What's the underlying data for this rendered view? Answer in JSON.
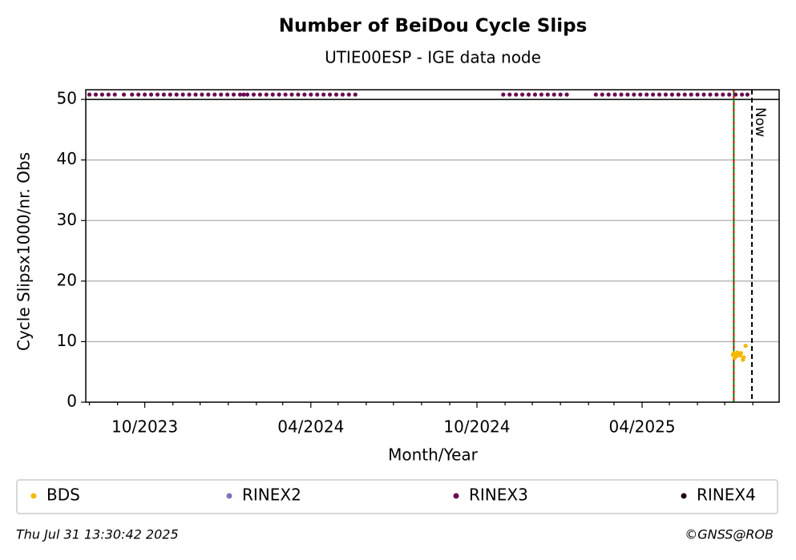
{
  "chart_data": {
    "type": "scatter",
    "title": "Number of BeiDou Cycle Slips",
    "subtitle": "UTIE00ESP - IGE data node",
    "x_label": "Month/Year",
    "y_label": "Cycle Slipsx1000/nr. Obs",
    "xlim": [
      "2023-07-28",
      "2025-08-30"
    ],
    "xticks": [
      {
        "value": "2023-10",
        "label": "10/2023"
      },
      {
        "value": "2024-04",
        "label": "04/2024"
      },
      {
        "value": "2024-10",
        "label": "10/2024"
      },
      {
        "value": "2025-04",
        "label": "04/2025"
      }
    ],
    "xminorticks": [
      "2023-08",
      "2023-09",
      "2023-11",
      "2023-12",
      "2024-01",
      "2024-02",
      "2024-03",
      "2024-05",
      "2024-06",
      "2024-07",
      "2024-08",
      "2024-09",
      "2024-11",
      "2024-12",
      "2025-01",
      "2025-02",
      "2025-03",
      "2025-05",
      "2025-06",
      "2025-07",
      "2025-08"
    ],
    "ylim": [
      0,
      51.6
    ],
    "yticks": [
      0,
      10,
      20,
      30,
      40,
      50
    ],
    "grid": true,
    "hline": 50,
    "vlines": [
      {
        "x": "2025-07-11",
        "color": "#008000",
        "dash_color": "#ff0000"
      },
      {
        "x": "2025-07-31",
        "color": "#000000",
        "label": "Now"
      }
    ],
    "legend": "bottom",
    "series": [
      {
        "name": "BDS",
        "color": "#f5b800",
        "x": [
          "2025-07-10",
          "2025-07-11",
          "2025-07-12",
          "2025-07-13",
          "2025-07-14",
          "2025-07-15",
          "2025-07-16",
          "2025-07-17",
          "2025-07-18",
          "2025-07-19",
          "2025-07-21",
          "2025-07-22",
          "2025-07-24"
        ],
        "values": [
          7.8,
          8.1,
          7.3,
          8.0,
          7.6,
          8.2,
          7.9,
          8.0,
          7.7,
          8.1,
          7.0,
          7.4,
          9.3
        ]
      },
      {
        "name": "RINEX2",
        "color": "#8073b8",
        "x": [],
        "values": []
      },
      {
        "name": "RINEX3",
        "color": "#6a0a52",
        "x": [
          "2023-08-01",
          "2023-08-08",
          "2023-08-15",
          "2023-08-22",
          "2023-08-29",
          "2023-09-08",
          "2023-09-17",
          "2023-09-24",
          "2023-10-01",
          "2023-10-08",
          "2023-10-15",
          "2023-10-22",
          "2023-10-29",
          "2023-11-05",
          "2023-11-12",
          "2023-11-19",
          "2023-11-26",
          "2023-12-03",
          "2023-12-10",
          "2023-12-17",
          "2023-12-24",
          "2023-12-31",
          "2024-01-07",
          "2024-01-14",
          "2024-01-18",
          "2024-01-22",
          "2024-01-29",
          "2024-02-05",
          "2024-02-12",
          "2024-02-19",
          "2024-02-26",
          "2024-03-04",
          "2024-03-11",
          "2024-03-18",
          "2024-03-25",
          "2024-04-01",
          "2024-04-08",
          "2024-04-15",
          "2024-04-22",
          "2024-04-29",
          "2024-05-06",
          "2024-05-13",
          "2024-05-20",
          "2024-10-30",
          "2024-11-06",
          "2024-11-13",
          "2024-11-20",
          "2024-11-27",
          "2024-12-04",
          "2024-12-11",
          "2024-12-18",
          "2024-12-25",
          "2025-01-01",
          "2025-01-08",
          "2025-02-09",
          "2025-02-16",
          "2025-02-23",
          "2025-03-02",
          "2025-03-09",
          "2025-03-16",
          "2025-03-23",
          "2025-03-30",
          "2025-04-06",
          "2025-04-13",
          "2025-04-20",
          "2025-04-27",
          "2025-05-04",
          "2025-05-11",
          "2025-05-18",
          "2025-05-25",
          "2025-06-01",
          "2025-06-08",
          "2025-06-15",
          "2025-06-22",
          "2025-06-29",
          "2025-07-06",
          "2025-07-13",
          "2025-07-20",
          "2025-07-26"
        ],
        "values": [
          50.8,
          50.8,
          50.8,
          50.8,
          50.8,
          50.8,
          50.8,
          50.8,
          50.8,
          50.8,
          50.8,
          50.8,
          50.8,
          50.8,
          50.8,
          50.8,
          50.8,
          50.8,
          50.8,
          50.8,
          50.8,
          50.8,
          50.8,
          50.8,
          50.8,
          50.8,
          50.8,
          50.8,
          50.8,
          50.8,
          50.8,
          50.8,
          50.8,
          50.8,
          50.8,
          50.8,
          50.8,
          50.8,
          50.8,
          50.8,
          50.8,
          50.8,
          50.8,
          50.8,
          50.8,
          50.8,
          50.8,
          50.8,
          50.8,
          50.8,
          50.8,
          50.8,
          50.8,
          50.8,
          50.8,
          50.8,
          50.8,
          50.8,
          50.8,
          50.8,
          50.8,
          50.8,
          50.8,
          50.8,
          50.8,
          50.8,
          50.8,
          50.8,
          50.8,
          50.8,
          50.8,
          50.8,
          50.8,
          50.8,
          50.8,
          50.8,
          50.8,
          50.8,
          50.8
        ]
      },
      {
        "name": "RINEX4",
        "color": "#1c0414",
        "x": [],
        "values": []
      }
    ],
    "footer_left": "Thu Jul 31 13:30:42 2025",
    "footer_right": "©GNSS@ROB"
  }
}
